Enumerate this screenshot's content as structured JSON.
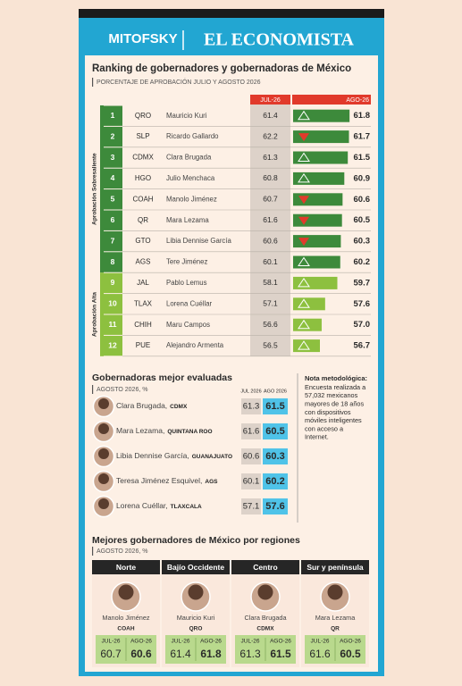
{
  "header": {
    "brand_left": "MITOFSKY",
    "brand_right": "EL ECONOMISTA"
  },
  "ranking": {
    "title": "Ranking de gobernadores y gobernadoras de México",
    "subtitle": "PORCENTAJE DE APROBACIÓN JULIO Y AGOSTO 2026",
    "columns": [
      "JUL-26",
      "AGO-26"
    ],
    "groups": [
      {
        "label": "Aprobación Sobresaliente",
        "rows": [
          {
            "rank": 1,
            "state": "QRO",
            "name": "Mauricio Kuri",
            "jul": 61.4,
            "ago": 61.8
          },
          {
            "rank": 2,
            "state": "SLP",
            "name": "Ricardo Gallardo",
            "jul": 62.2,
            "ago": 61.7
          },
          {
            "rank": 3,
            "state": "CDMX",
            "name": "Clara Brugada",
            "jul": 61.3,
            "ago": 61.5
          },
          {
            "rank": 4,
            "state": "HGO",
            "name": "Julio Menchaca",
            "jul": 60.8,
            "ago": 60.9
          },
          {
            "rank": 5,
            "state": "COAH",
            "name": "Manolo Jiménez",
            "jul": 60.7,
            "ago": 60.6
          },
          {
            "rank": 6,
            "state": "QR",
            "name": "Mara Lezama",
            "jul": 61.6,
            "ago": 60.5
          },
          {
            "rank": 7,
            "state": "GTO",
            "name": "Libia Dennise García",
            "jul": 60.6,
            "ago": 60.3
          },
          {
            "rank": 8,
            "state": "AGS",
            "name": "Tere Jiménez",
            "jul": 60.1,
            "ago": 60.2
          }
        ]
      },
      {
        "label": "Aprobación Alta",
        "rows": [
          {
            "rank": 9,
            "state": "JAL",
            "name": "Pablo Lemus",
            "jul": 58.1,
            "ago": 59.7
          },
          {
            "rank": 10,
            "state": "TLAX",
            "name": "Lorena Cuéllar",
            "jul": 57.1,
            "ago": 57.6
          },
          {
            "rank": 11,
            "state": "CHIH",
            "name": "Maru Campos",
            "jul": 56.6,
            "ago": 57.0,
            "ago_label": "57.0"
          },
          {
            "rank": 12,
            "state": "PUE",
            "name": "Alejandro Armenta",
            "jul": 56.5,
            "ago": 56.7
          }
        ]
      }
    ]
  },
  "women": {
    "title": "Gobernadoras mejor evaluadas",
    "subtitle": "AGOSTO 2026, %",
    "columns": [
      "JUL 2026",
      "AGO 2026"
    ],
    "rows": [
      {
        "name": "Clara Brugada,",
        "state": "CDMX",
        "jul": 61.3,
        "ago": 61.5
      },
      {
        "name": "Mara Lezama,",
        "state": "QUINTANA ROO",
        "jul": 61.6,
        "ago": 60.5
      },
      {
        "name": "Libia Dennise García,",
        "state": "GUANAJUATO",
        "jul": 60.6,
        "ago": 60.3
      },
      {
        "name": "Teresa Jiménez Esquivel,",
        "state": "AGS",
        "jul": 60.1,
        "ago": 60.2
      },
      {
        "name": "Lorena Cuéllar,",
        "state": "TLAXCALA",
        "jul": 57.1,
        "ago": 57.6
      }
    ]
  },
  "note": {
    "title": "Nota metodológica:",
    "lines": [
      "Encuesta realizada a",
      "57,032 mexicanos",
      "mayores de 18 años",
      "con dispositivos",
      "móviles inteligentes",
      "con acceso a",
      "Internet."
    ]
  },
  "regions": {
    "title": "Mejores gobernadores de México por regiones",
    "subtitle": "AGOSTO 2026, %",
    "labels": [
      "JUL-26",
      "AGO-26"
    ],
    "items": [
      {
        "region": "Norte",
        "name": "Manolo Jiménez",
        "state": "COAH",
        "jul": 60.7,
        "ago": 60.6
      },
      {
        "region": "Bajío Occidente",
        "name": "Mauricio Kuri",
        "state": "QRO",
        "jul": 61.4,
        "ago": 61.8
      },
      {
        "region": "Centro",
        "name": "Clara Brugada",
        "state": "CDMX",
        "jul": 61.3,
        "ago": 61.5
      },
      {
        "region": "Sur y península",
        "name": "Mara Lezama",
        "state": "QR",
        "jul": 61.6,
        "ago": 60.5
      }
    ]
  }
}
